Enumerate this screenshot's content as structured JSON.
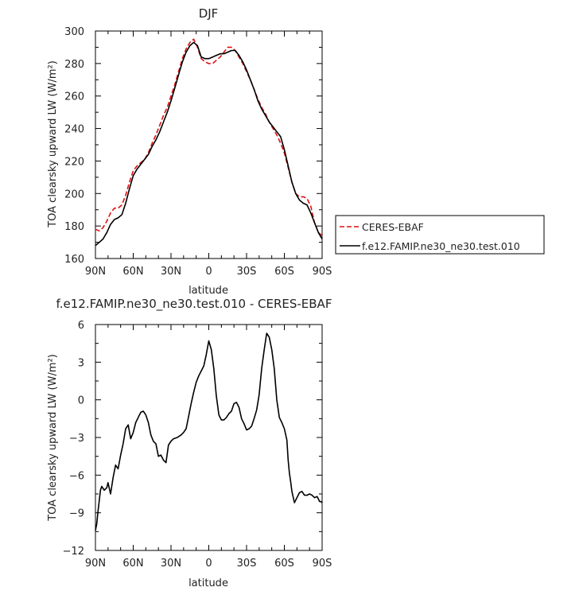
{
  "chart_data": [
    {
      "type": "line",
      "title": "DJF",
      "xlabel": "latitude",
      "ylabel": "TOA clearsky upward LW (W/m²)",
      "xlim": [
        90,
        -90
      ],
      "ylim": [
        160,
        300
      ],
      "x_ticks": [
        {
          "value": 90,
          "label": "90N"
        },
        {
          "value": 60,
          "label": "60N"
        },
        {
          "value": 30,
          "label": "30N"
        },
        {
          "value": 0,
          "label": "0"
        },
        {
          "value": -30,
          "label": "30S"
        },
        {
          "value": -60,
          "label": "60S"
        },
        {
          "value": -90,
          "label": "90S"
        }
      ],
      "y_ticks": [
        {
          "value": 160,
          "label": "160"
        },
        {
          "value": 180,
          "label": "180"
        },
        {
          "value": 200,
          "label": "200"
        },
        {
          "value": 220,
          "label": "220"
        },
        {
          "value": 240,
          "label": "240"
        },
        {
          "value": 260,
          "label": "260"
        },
        {
          "value": 280,
          "label": "280"
        },
        {
          "value": 300,
          "label": "300"
        }
      ],
      "legend_position": "right",
      "series": [
        {
          "name": "CERES-EBAF",
          "color": "#dd1111",
          "dashed": true,
          "x": [
            90,
            87,
            84,
            81,
            78,
            75,
            72,
            69,
            66,
            63,
            60,
            57,
            54,
            51,
            48,
            45,
            42,
            39,
            36,
            33,
            30,
            27,
            24,
            21,
            18,
            15,
            12,
            9,
            6,
            3,
            0,
            -3,
            -6,
            -9,
            -12,
            -15,
            -18,
            -21,
            -24,
            -27,
            -30,
            -33,
            -36,
            -39,
            -42,
            -45,
            -48,
            -51,
            -54,
            -57,
            -60,
            -63,
            -66,
            -69,
            -72,
            -75,
            -78,
            -81,
            -84,
            -87,
            -90
          ],
          "y": [
            178,
            177,
            179,
            183,
            188,
            191,
            191,
            193,
            199,
            207,
            214,
            217,
            219,
            221,
            225,
            231,
            236,
            242,
            248,
            253,
            260,
            267,
            275,
            283,
            289,
            293,
            295,
            290,
            283,
            281,
            280,
            280,
            282,
            284,
            287,
            290,
            290,
            288,
            284,
            280,
            275,
            270,
            264,
            258,
            253,
            249,
            244,
            240,
            236,
            231,
            225,
            216,
            207,
            200,
            198,
            198,
            197,
            192,
            182,
            176,
            174
          ]
        },
        {
          "name": "f.e12.FAMIP.ne30_ne30.test.010",
          "color": "#000000",
          "dashed": false,
          "x": [
            90,
            87,
            84,
            81,
            78,
            75,
            72,
            69,
            66,
            63,
            60,
            57,
            54,
            51,
            48,
            45,
            42,
            39,
            36,
            33,
            30,
            27,
            24,
            21,
            18,
            15,
            12,
            9,
            6,
            3,
            0,
            -3,
            -6,
            -9,
            -12,
            -15,
            -18,
            -21,
            -24,
            -27,
            -30,
            -33,
            -36,
            -39,
            -42,
            -45,
            -48,
            -51,
            -54,
            -57,
            -60,
            -63,
            -66,
            -69,
            -72,
            -75,
            -78,
            -81,
            -84,
            -87,
            -90
          ],
          "y": [
            168,
            170,
            172,
            176,
            181,
            184,
            185,
            187,
            194,
            203,
            211,
            215,
            218,
            221,
            224,
            229,
            233,
            238,
            244,
            250,
            257,
            265,
            273,
            281,
            287,
            291,
            293,
            291,
            284,
            283,
            283,
            284,
            285,
            286,
            286,
            287,
            288,
            288,
            285,
            281,
            276,
            270,
            264,
            257,
            252,
            248,
            244,
            241,
            238,
            235,
            227,
            217,
            207,
            200,
            196,
            194,
            193,
            188,
            182,
            176,
            172
          ]
        }
      ]
    },
    {
      "type": "line",
      "title": "f.e12.FAMIP.ne30_ne30.test.010 - CERES-EBAF",
      "xlabel": "latitude",
      "ylabel": "TOA clearsky upward LW (W/m²)",
      "xlim": [
        90,
        -90
      ],
      "ylim": [
        -12,
        6
      ],
      "x_ticks": [
        {
          "value": 90,
          "label": "90N"
        },
        {
          "value": 60,
          "label": "60N"
        },
        {
          "value": 30,
          "label": "30N"
        },
        {
          "value": 0,
          "label": "0"
        },
        {
          "value": -30,
          "label": "30S"
        },
        {
          "value": -60,
          "label": "60S"
        },
        {
          "value": -90,
          "label": "90S"
        }
      ],
      "y_ticks": [
        {
          "value": -12,
          "label": "−12"
        },
        {
          "value": -9,
          "label": "−9"
        },
        {
          "value": -6,
          "label": "−6"
        },
        {
          "value": -3,
          "label": "−3"
        },
        {
          "value": 0,
          "label": "0"
        },
        {
          "value": 3,
          "label": "3"
        },
        {
          "value": 6,
          "label": "6"
        }
      ],
      "series": [
        {
          "color": "#000000",
          "dashed": false,
          "x": [
            90,
            89,
            88,
            86,
            85,
            83,
            81,
            80,
            78,
            76,
            74,
            72,
            70,
            68,
            66,
            64,
            62,
            60,
            58,
            56,
            54,
            52,
            50,
            48,
            46,
            44,
            42,
            40,
            38,
            36,
            34,
            32,
            30,
            28,
            25,
            22,
            20,
            18,
            16,
            14,
            12,
            10,
            8,
            6,
            4,
            2,
            0,
            -2,
            -4,
            -6,
            -8,
            -10,
            -12,
            -14,
            -16,
            -18,
            -20,
            -22,
            -24,
            -26,
            -28,
            -30,
            -32,
            -34,
            -36,
            -38,
            -40,
            -42,
            -44,
            -46,
            -48,
            -50,
            -52,
            -54,
            -56,
            -58,
            -60,
            -62,
            -63,
            -64,
            -65,
            -66,
            -68,
            -70,
            -72,
            -74,
            -76,
            -78,
            -80,
            -82,
            -84,
            -86,
            -87,
            -88,
            -89,
            -90
          ],
          "y": [
            -10.4,
            -9.9,
            -8.9,
            -7.2,
            -6.9,
            -7.2,
            -7.0,
            -6.6,
            -7.5,
            -6.2,
            -5.2,
            -5.5,
            -4.4,
            -3.5,
            -2.3,
            -2.0,
            -3.1,
            -2.6,
            -1.8,
            -1.4,
            -1.0,
            -0.9,
            -1.2,
            -1.8,
            -2.8,
            -3.3,
            -3.5,
            -4.5,
            -4.4,
            -4.8,
            -5.0,
            -3.6,
            -3.3,
            -3.1,
            -3.0,
            -2.8,
            -2.6,
            -2.3,
            -1.3,
            -0.3,
            0.6,
            1.4,
            1.9,
            2.3,
            2.7,
            3.6,
            4.7,
            4.0,
            2.5,
            0.3,
            -1.2,
            -1.6,
            -1.6,
            -1.4,
            -1.1,
            -0.9,
            -0.3,
            -0.2,
            -0.6,
            -1.5,
            -1.9,
            -2.4,
            -2.3,
            -2.1,
            -1.5,
            -0.8,
            0.4,
            2.5,
            4.0,
            5.3,
            5.0,
            4.0,
            2.5,
            0.0,
            -1.4,
            -1.8,
            -2.3,
            -3.2,
            -4.8,
            -5.8,
            -6.5,
            -7.3,
            -8.2,
            -7.8,
            -7.4,
            -7.3,
            -7.6,
            -7.6,
            -7.5,
            -7.6,
            -7.8,
            -7.7,
            -7.9,
            -8.1,
            -8.1,
            -8.2
          ]
        }
      ]
    }
  ]
}
